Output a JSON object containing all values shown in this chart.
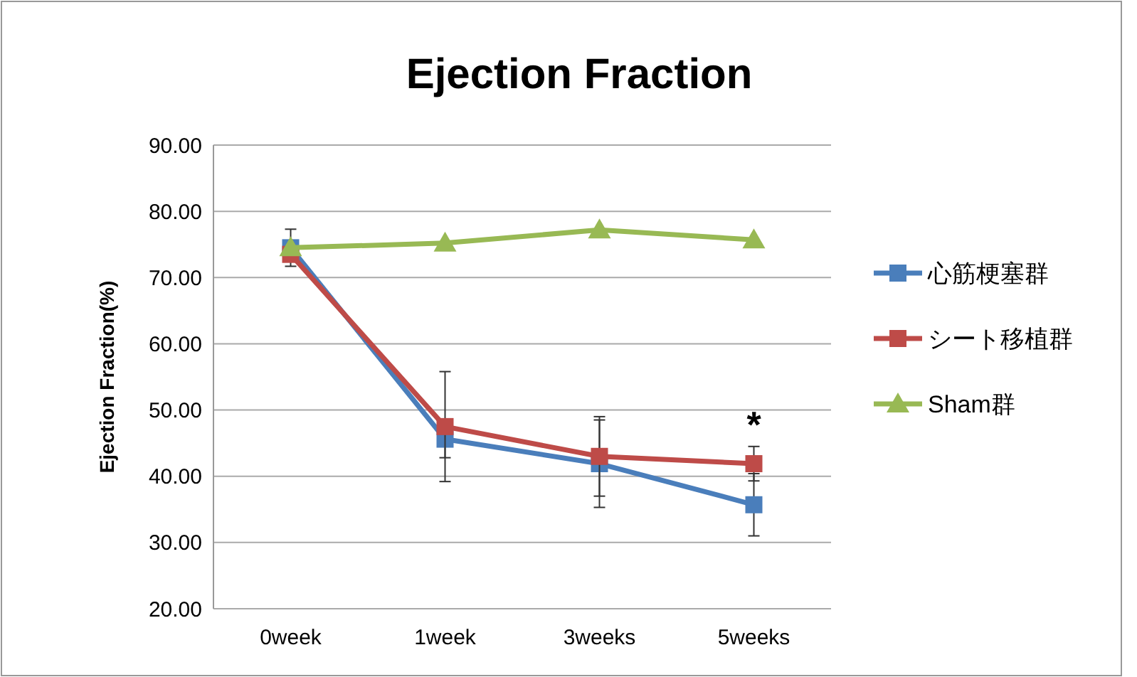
{
  "chart_data": {
    "type": "line",
    "title": "Ejection Fraction",
    "ylabel": "Ejection Fraction(%)",
    "categories": [
      "0week",
      "1week",
      "3weeks",
      "5weeks"
    ],
    "series": [
      {
        "name": "心筋梗塞群",
        "color": "#4a7ebb",
        "marker": "square",
        "values": [
          74.5,
          45.6,
          41.9,
          35.7
        ],
        "errors": [
          2.8,
          2.8,
          6.6,
          4.7
        ]
      },
      {
        "name": "シート移植群",
        "color": "#be4b48",
        "marker": "square",
        "values": [
          73.5,
          47.5,
          43.0,
          41.9
        ],
        "errors": [
          null,
          8.3,
          6.0,
          2.6
        ]
      },
      {
        "name": "Sham群",
        "color": "#98b954",
        "marker": "triangle",
        "values": [
          74.5,
          75.2,
          77.2,
          75.7
        ],
        "errors": [
          null,
          null,
          null,
          null
        ]
      }
    ],
    "ylim": [
      20,
      90
    ],
    "yticks": [
      {
        "value": 20,
        "label": "20.00"
      },
      {
        "value": 30,
        "label": "30.00"
      },
      {
        "value": 40,
        "label": "40.00"
      },
      {
        "value": 50,
        "label": "50.00"
      },
      {
        "value": 60,
        "label": "60.00"
      },
      {
        "value": 70,
        "label": "70.00"
      },
      {
        "value": 80,
        "label": "80.00"
      },
      {
        "value": 90,
        "label": "90.00"
      }
    ],
    "grid": "y",
    "legend": "right",
    "annotations": [
      "*"
    ]
  }
}
